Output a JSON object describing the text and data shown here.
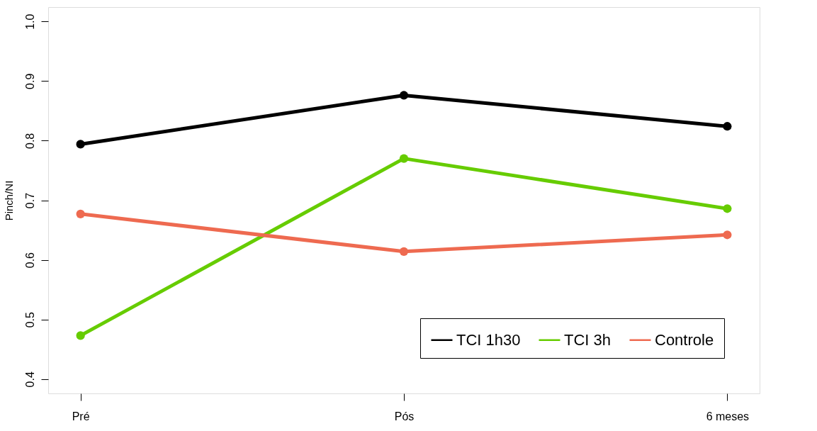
{
  "chart_data": {
    "type": "line",
    "ylabel": "Pinch/NI",
    "categories": [
      "Pré",
      "Pós",
      "6 meses"
    ],
    "series": [
      {
        "name": "TCI 1h30",
        "color": "#000000",
        "values": [
          0.794,
          0.876,
          0.824
        ]
      },
      {
        "name": "TCI 3h",
        "color": "#66cc00",
        "values": [
          0.473,
          0.77,
          0.686
        ]
      },
      {
        "name": "Controle",
        "color": "#ee6a50",
        "values": [
          0.677,
          0.614,
          0.642
        ]
      }
    ],
    "ylim": [
      0.376,
      1.024
    ],
    "yticks": [
      0.4,
      0.5,
      0.6,
      0.7,
      0.8,
      0.9,
      {
        "value": 1.0,
        "label": "1.0"
      }
    ],
    "grid": false,
    "legend": "bottom right",
    "marker": "circle",
    "line_style": "solid"
  }
}
